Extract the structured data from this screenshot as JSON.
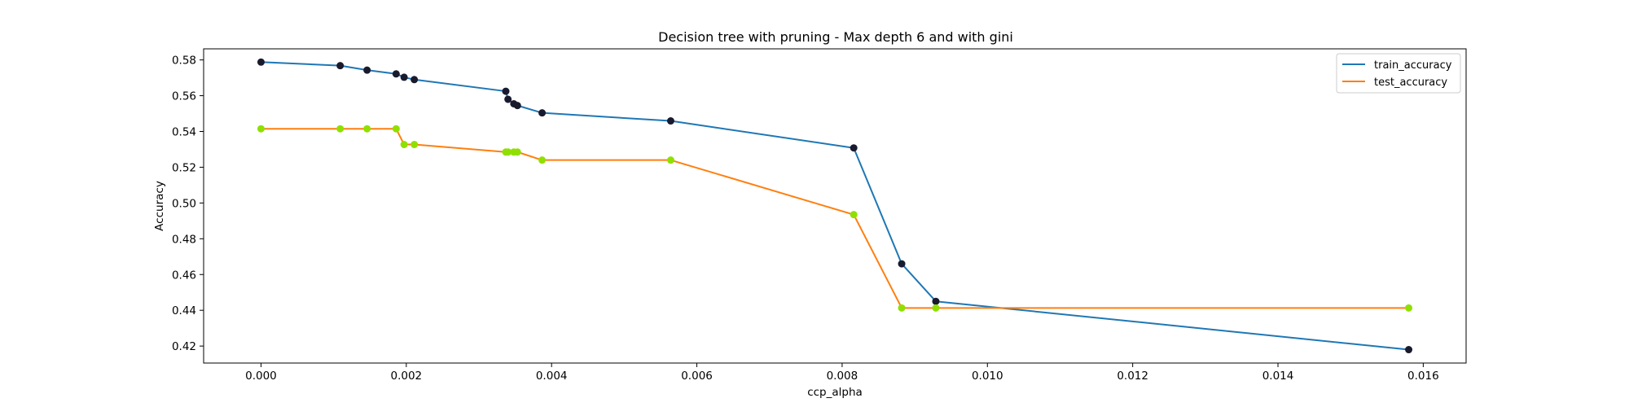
{
  "chart_data": {
    "type": "line",
    "title": "Decision tree with pruning - Max depth 6 and with gini",
    "xlabel": "ccp_alpha",
    "ylabel": "Accuracy",
    "xlim": [
      -0.00079,
      0.01659
    ],
    "ylim": [
      0.4105,
      0.5862
    ],
    "grid": false,
    "legend_position": "top-right",
    "x_ticks": [
      0.0,
      0.002,
      0.004,
      0.006,
      0.008,
      0.01,
      0.012,
      0.014,
      0.016
    ],
    "x_tick_labels": [
      "0.000",
      "0.002",
      "0.004",
      "0.006",
      "0.008",
      "0.010",
      "0.012",
      "0.014",
      "0.016"
    ],
    "y_ticks": [
      0.42,
      0.44,
      0.46,
      0.48,
      0.5,
      0.52,
      0.54,
      0.56,
      0.58
    ],
    "y_tick_labels": [
      "0.42",
      "0.44",
      "0.46",
      "0.48",
      "0.50",
      "0.52",
      "0.54",
      "0.56",
      "0.58"
    ],
    "x": [
      0.0,
      0.00109,
      0.00146,
      0.00186,
      0.00197,
      0.00211,
      0.00337,
      0.0034,
      0.00348,
      0.00353,
      0.00387,
      0.00564,
      0.00816,
      0.00882,
      0.00929,
      0.0158
    ],
    "series": [
      {
        "name": "train_accuracy",
        "color": "#1f77b4",
        "marker_color": "#1a1a2e",
        "values": [
          0.5788,
          0.5768,
          0.5743,
          0.5722,
          0.5703,
          0.569,
          0.5625,
          0.558,
          0.5555,
          0.5545,
          0.5504,
          0.5459,
          0.5308,
          0.466,
          0.445,
          0.418
        ]
      },
      {
        "name": "test_accuracy",
        "color": "#ff7f0e",
        "marker_color": "#8fe000",
        "values": [
          0.5415,
          0.5415,
          0.5415,
          0.5415,
          0.5327,
          0.5327,
          0.5285,
          0.5285,
          0.5285,
          0.5285,
          0.524,
          0.524,
          0.4935,
          0.4413,
          0.4413,
          0.4413
        ]
      }
    ]
  }
}
